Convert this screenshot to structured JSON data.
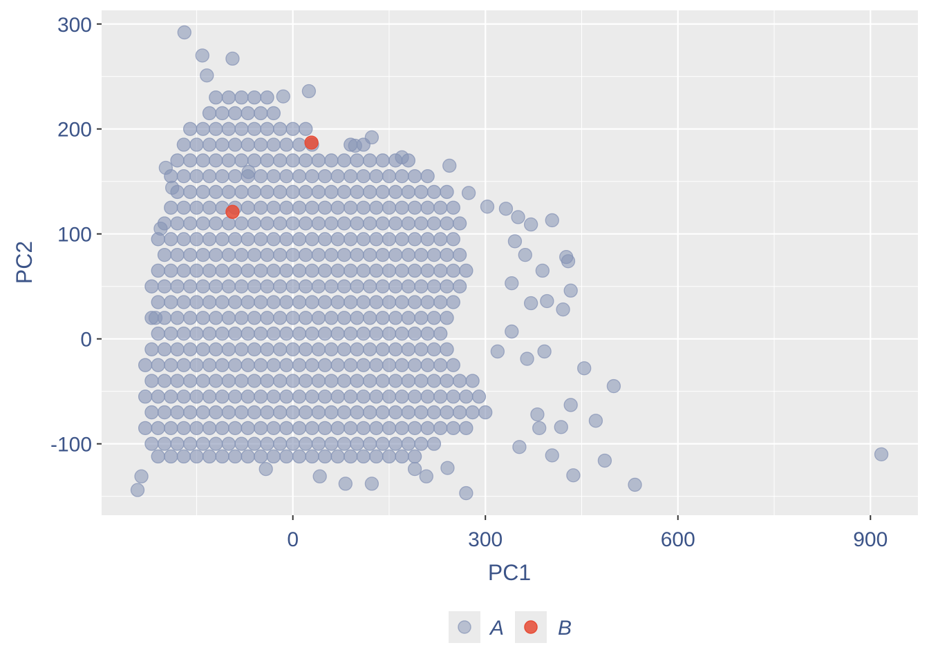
{
  "chart_data": {
    "type": "scatter",
    "xlabel": "PC1",
    "ylabel": "PC2",
    "xlim": [
      -298,
      974
    ],
    "ylim": [
      -168,
      313
    ],
    "x_ticks": [
      0,
      300,
      600,
      900
    ],
    "y_ticks": [
      -100,
      0,
      100,
      200,
      300
    ],
    "x_tick_labels": [
      "0",
      "300",
      "600",
      "900"
    ],
    "y_tick_labels": [
      "-100",
      "0",
      "100",
      "200",
      "300"
    ],
    "grid": true,
    "legend": {
      "position": "bottom",
      "entries": [
        "A",
        "B"
      ]
    },
    "colors": {
      "A": "#8593B5",
      "B": "#E64B35",
      "panel": "#EBEBEB",
      "text": "#3C5488"
    },
    "series": [
      {
        "name": "A",
        "dense_rows": [
          {
            "y": 230,
            "x": [
              -120,
              -100,
              -80,
              -60,
              -40
            ]
          },
          {
            "y": 215,
            "x": [
              -130,
              -110,
              -90,
              -70,
              -50,
              -30
            ]
          },
          {
            "y": 200,
            "x": [
              -160,
              -140,
              -120,
              -100,
              -80,
              -60,
              -40,
              -20,
              0,
              20
            ]
          },
          {
            "y": 185,
            "x": [
              -170,
              -150,
              -130,
              -110,
              -90,
              -70,
              -50,
              -30,
              -10,
              10,
              30,
              90,
              110
            ]
          },
          {
            "y": 170,
            "x": [
              -180,
              -160,
              -140,
              -120,
              -100,
              -80,
              -60,
              -40,
              -20,
              0,
              20,
              40,
              60,
              80,
              100,
              120,
              140,
              160,
              180
            ]
          },
          {
            "y": 155,
            "x": [
              -190,
              -170,
              -150,
              -130,
              -110,
              -90,
              -70,
              -50,
              -30,
              -10,
              10,
              30,
              50,
              70,
              90,
              110,
              130,
              150,
              170,
              190,
              210
            ]
          },
          {
            "y": 140,
            "x": [
              -180,
              -160,
              -140,
              -120,
              -100,
              -80,
              -60,
              -40,
              -20,
              0,
              20,
              40,
              60,
              80,
              100,
              120,
              140,
              160,
              180,
              200,
              220,
              240
            ]
          },
          {
            "y": 125,
            "x": [
              -190,
              -170,
              -150,
              -130,
              -110,
              -90,
              -70,
              -50,
              -30,
              -10,
              10,
              30,
              50,
              70,
              90,
              110,
              130,
              150,
              170,
              190,
              210,
              230,
              250
            ]
          },
          {
            "y": 110,
            "x": [
              -200,
              -180,
              -160,
              -140,
              -120,
              -100,
              -80,
              -60,
              -40,
              -20,
              0,
              20,
              40,
              60,
              80,
              100,
              120,
              140,
              160,
              180,
              200,
              220,
              240,
              260
            ]
          },
          {
            "y": 95,
            "x": [
              -210,
              -190,
              -170,
              -150,
              -130,
              -110,
              -90,
              -70,
              -50,
              -30,
              -10,
              10,
              30,
              50,
              70,
              90,
              110,
              130,
              150,
              170,
              190,
              210,
              230,
              250
            ]
          },
          {
            "y": 80,
            "x": [
              -200,
              -180,
              -160,
              -140,
              -120,
              -100,
              -80,
              -60,
              -40,
              -20,
              0,
              20,
              40,
              60,
              80,
              100,
              120,
              140,
              160,
              180,
              200,
              220,
              240,
              260
            ]
          },
          {
            "y": 65,
            "x": [
              -210,
              -190,
              -170,
              -150,
              -130,
              -110,
              -90,
              -70,
              -50,
              -30,
              -10,
              10,
              30,
              50,
              70,
              90,
              110,
              130,
              150,
              170,
              190,
              210,
              230,
              250,
              270
            ]
          },
          {
            "y": 50,
            "x": [
              -220,
              -200,
              -180,
              -160,
              -140,
              -120,
              -100,
              -80,
              -60,
              -40,
              -20,
              0,
              20,
              40,
              60,
              80,
              100,
              120,
              140,
              160,
              180,
              200,
              220,
              240,
              260
            ]
          },
          {
            "y": 35,
            "x": [
              -210,
              -190,
              -170,
              -150,
              -130,
              -110,
              -90,
              -70,
              -50,
              -30,
              -10,
              10,
              30,
              50,
              70,
              90,
              110,
              130,
              150,
              170,
              190,
              210,
              230,
              250
            ]
          },
          {
            "y": 20,
            "x": [
              -220,
              -200,
              -180,
              -160,
              -140,
              -120,
              -100,
              -80,
              -60,
              -40,
              -20,
              0,
              20,
              40,
              60,
              80,
              100,
              120,
              140,
              160,
              180,
              200,
              220,
              240
            ]
          },
          {
            "y": 5,
            "x": [
              -210,
              -190,
              -170,
              -150,
              -130,
              -110,
              -90,
              -70,
              -50,
              -30,
              -10,
              10,
              30,
              50,
              70,
              90,
              110,
              130,
              150,
              170,
              190,
              210,
              230
            ]
          },
          {
            "y": -10,
            "x": [
              -220,
              -200,
              -180,
              -160,
              -140,
              -120,
              -100,
              -80,
              -60,
              -40,
              -20,
              0,
              20,
              40,
              60,
              80,
              100,
              120,
              140,
              160,
              180,
              200,
              220,
              240
            ]
          },
          {
            "y": -25,
            "x": [
              -230,
              -210,
              -190,
              -170,
              -150,
              -130,
              -110,
              -90,
              -70,
              -50,
              -30,
              -10,
              10,
              30,
              50,
              70,
              90,
              110,
              130,
              150,
              170,
              190,
              210,
              230,
              250
            ]
          },
          {
            "y": -40,
            "x": [
              -220,
              -200,
              -180,
              -160,
              -140,
              -120,
              -100,
              -80,
              -60,
              -40,
              -20,
              0,
              20,
              40,
              60,
              80,
              100,
              120,
              140,
              160,
              180,
              200,
              220,
              240,
              260,
              280
            ]
          },
          {
            "y": -55,
            "x": [
              -230,
              -210,
              -190,
              -170,
              -150,
              -130,
              -110,
              -90,
              -70,
              -50,
              -30,
              -10,
              10,
              30,
              50,
              70,
              90,
              110,
              130,
              150,
              170,
              190,
              210,
              230,
              250,
              270,
              290
            ]
          },
          {
            "y": -70,
            "x": [
              -220,
              -200,
              -180,
              -160,
              -140,
              -120,
              -100,
              -80,
              -60,
              -40,
              -20,
              0,
              20,
              40,
              60,
              80,
              100,
              120,
              140,
              160,
              180,
              200,
              220,
              240,
              260,
              280,
              300
            ]
          },
          {
            "y": -85,
            "x": [
              -230,
              -210,
              -190,
              -170,
              -150,
              -130,
              -110,
              -90,
              -70,
              -50,
              -30,
              -10,
              10,
              30,
              50,
              70,
              90,
              110,
              130,
              150,
              170,
              190,
              210,
              230,
              250,
              270
            ]
          },
          {
            "y": -100,
            "x": [
              -220,
              -200,
              -180,
              -160,
              -140,
              -120,
              -100,
              -80,
              -60,
              -40,
              -20,
              0,
              20,
              40,
              60,
              80,
              100,
              120,
              140,
              160,
              180,
              200,
              220
            ]
          },
          {
            "y": -112,
            "x": [
              -210,
              -190,
              -170,
              -150,
              -130,
              -110,
              -90,
              -70,
              -50,
              -30,
              -10,
              10,
              30,
              50,
              70,
              90,
              110,
              130,
              150,
              170,
              190
            ]
          }
        ],
        "points": [
          [
            917,
            -110
          ],
          [
            533,
            -139
          ],
          [
            486,
            -116
          ],
          [
            437,
            -130
          ],
          [
            404,
            -111
          ],
          [
            472,
            -78
          ],
          [
            500,
            -45
          ],
          [
            454,
            -28
          ],
          [
            433,
            46
          ],
          [
            429,
            74
          ],
          [
            426,
            78
          ],
          [
            404,
            113
          ],
          [
            371,
            109
          ],
          [
            351,
            116
          ],
          [
            389,
            65
          ],
          [
            396,
            36
          ],
          [
            421,
            28
          ],
          [
            392,
            -12
          ],
          [
            433,
            -63
          ],
          [
            418,
            -84
          ],
          [
            384,
            -85
          ],
          [
            353,
            -103
          ],
          [
            381,
            -72
          ],
          [
            270,
            -147
          ],
          [
            -169,
            292
          ],
          [
            -242,
            -144
          ],
          [
            -236,
            -131
          ],
          [
            25,
            236
          ],
          [
            -141,
            270
          ],
          [
            -94,
            267
          ],
          [
            123,
            192
          ],
          [
            170,
            173
          ],
          [
            244,
            165
          ],
          [
            274,
            139
          ],
          [
            303,
            126
          ],
          [
            332,
            124
          ],
          [
            346,
            93
          ],
          [
            362,
            80
          ],
          [
            341,
            53
          ],
          [
            371,
            34
          ],
          [
            365,
            -19
          ],
          [
            341,
            7
          ],
          [
            319,
            -12
          ],
          [
            82,
            -138
          ],
          [
            123,
            -138
          ],
          [
            42,
            -131
          ],
          [
            -42,
            -124
          ],
          [
            190,
            -124
          ],
          [
            208,
            -131
          ],
          [
            241,
            -123
          ],
          [
            -69,
            159
          ],
          [
            -15,
            231
          ],
          [
            97,
            184
          ],
          [
            -134,
            251
          ],
          [
            -198,
            163
          ],
          [
            -188,
            144
          ],
          [
            -206,
            105
          ],
          [
            -214,
            20
          ]
        ]
      },
      {
        "name": "B",
        "points": [
          [
            -94,
            121
          ],
          [
            29,
            187
          ]
        ]
      }
    ]
  }
}
